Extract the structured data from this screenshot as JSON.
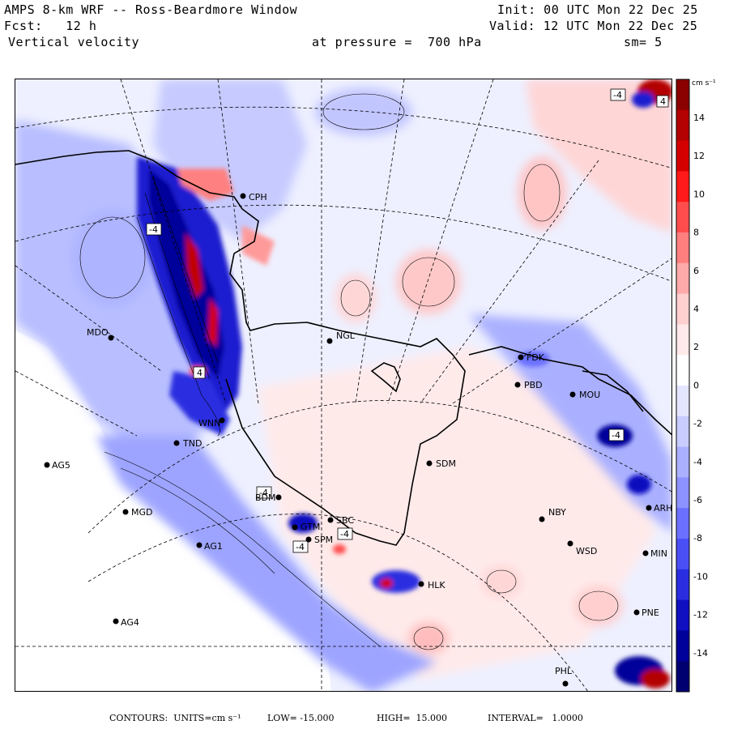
{
  "header": {
    "model": "AMPS 8-km WRF -- Ross-Beardmore Window",
    "init": "Init: 00 UTC Mon 22 Dec 25",
    "fcst": "Fcst:   12 h",
    "valid": "Valid: 12 UTC Mon 22 Dec 25",
    "field": "Vertical velocity",
    "level": "at pressure =  700 hPa",
    "smooth": "sm= 5"
  },
  "colorbar": {
    "units_label": "cm s⁻¹",
    "ticks": [
      "14",
      "12",
      "10",
      "8",
      "6",
      "4",
      "2",
      "0",
      "-2",
      "-4",
      "-6",
      "-8",
      "-10",
      "-12",
      "-14"
    ],
    "colors": [
      "#8b0000",
      "#b30000",
      "#d40000",
      "#ff1a1a",
      "#ff4d4d",
      "#ff7f7f",
      "#ffaaaa",
      "#ffd0d0",
      "#ffe9e9",
      "#ffffff",
      "#e4e6ff",
      "#c8ccff",
      "#aab0ff",
      "#8c92ff",
      "#6b70ff",
      "#4a4ff5",
      "#2a2ee0",
      "#1010c0",
      "#00009a",
      "#000070"
    ]
  },
  "stations": [
    {
      "id": "CPH",
      "label": "CPH"
    },
    {
      "id": "MDO",
      "label": "MDO"
    },
    {
      "id": "NGL",
      "label": "NGL"
    },
    {
      "id": "FDK",
      "label": "FDK"
    },
    {
      "id": "PBD",
      "label": "PBD"
    },
    {
      "id": "MOU",
      "label": "MOU"
    },
    {
      "id": "WNN",
      "label": "WNN"
    },
    {
      "id": "TND",
      "label": "TND"
    },
    {
      "id": "AG5",
      "label": "AG5"
    },
    {
      "id": "SDM",
      "label": "SDM"
    },
    {
      "id": "MGD",
      "label": "MGD"
    },
    {
      "id": "BDM",
      "label": "BDM"
    },
    {
      "id": "SBC",
      "label": "SBC"
    },
    {
      "id": "GTM",
      "label": "GTM"
    },
    {
      "id": "SPM",
      "label": "SPM"
    },
    {
      "id": "NBY",
      "label": "NBY"
    },
    {
      "id": "AG1",
      "label": "AG1"
    },
    {
      "id": "WSD",
      "label": "WSD"
    },
    {
      "id": "HLK",
      "label": "HLK"
    },
    {
      "id": "AG4",
      "label": "AG4"
    },
    {
      "id": "PNE",
      "label": "PNE"
    },
    {
      "id": "PHL",
      "label": "PHL"
    },
    {
      "id": "ARH",
      "label": "ARH"
    },
    {
      "id": "MIN",
      "label": "MIN"
    }
  ],
  "box_labels": {
    "minus4": "-4",
    "plus4": "4"
  },
  "footer": {
    "contours": "CONTOURS:  UNITS=cm s⁻¹",
    "low": "LOW= -15.000",
    "high": "HIGH=  15.000",
    "interval": "INTERVAL=   1.0000"
  }
}
